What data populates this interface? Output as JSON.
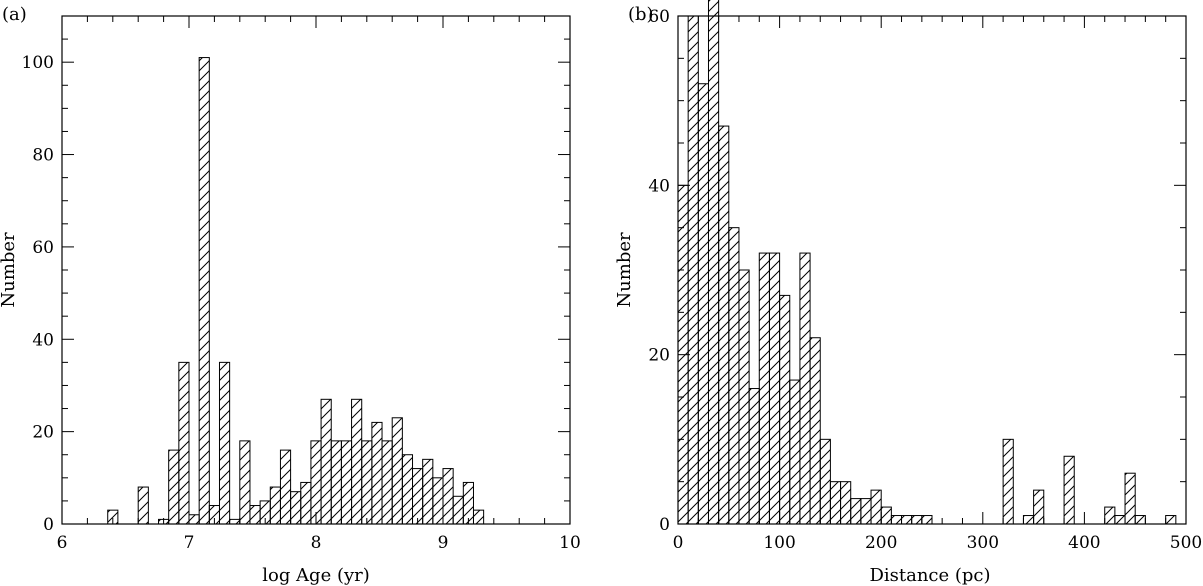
{
  "chart_data": [
    {
      "type": "bar",
      "panel_label": "(a)",
      "xlabel": "log Age (yr)",
      "ylabel": "Number",
      "xlim": [
        6,
        10
      ],
      "ylim": [
        0,
        110
      ],
      "xticks": [
        6,
        7,
        8,
        9,
        10
      ],
      "yticks": [
        0,
        20,
        40,
        60,
        80,
        100
      ],
      "x_minor": 0.2,
      "y_minor": 5,
      "bin_width": 0.08,
      "bin_start": 6.36,
      "values": [
        3,
        0,
        0,
        8,
        0,
        1,
        16,
        35,
        2,
        101,
        4,
        35,
        1,
        18,
        4,
        5,
        8,
        16,
        7,
        9,
        18,
        27,
        18,
        18,
        27,
        18,
        22,
        18,
        23,
        15,
        12,
        14,
        10,
        12,
        6,
        9,
        3
      ],
      "pattern": "diagonal-hatch"
    },
    {
      "type": "bar",
      "panel_label": "(b)",
      "xlabel": "Distance (pc)",
      "ylabel": "Number",
      "xlim": [
        0,
        500
      ],
      "ylim": [
        0,
        60
      ],
      "xticks": [
        0,
        100,
        200,
        300,
        400,
        500
      ],
      "yticks": [
        0,
        20,
        40,
        60
      ],
      "x_minor": 20,
      "y_minor": 5,
      "bin_width": 10,
      "bin_start": 0,
      "values": [
        40,
        60,
        52,
        62,
        47,
        35,
        30,
        16,
        32,
        32,
        27,
        17,
        32,
        22,
        10,
        5,
        5,
        3,
        3,
        4,
        2,
        1,
        1,
        1,
        1,
        0,
        0,
        0,
        0,
        0,
        0,
        0,
        10,
        0,
        1,
        4,
        0,
        0,
        8,
        0,
        0,
        0,
        2,
        1,
        6,
        1,
        0,
        0,
        1
      ],
      "pattern": "diagonal-hatch"
    }
  ]
}
